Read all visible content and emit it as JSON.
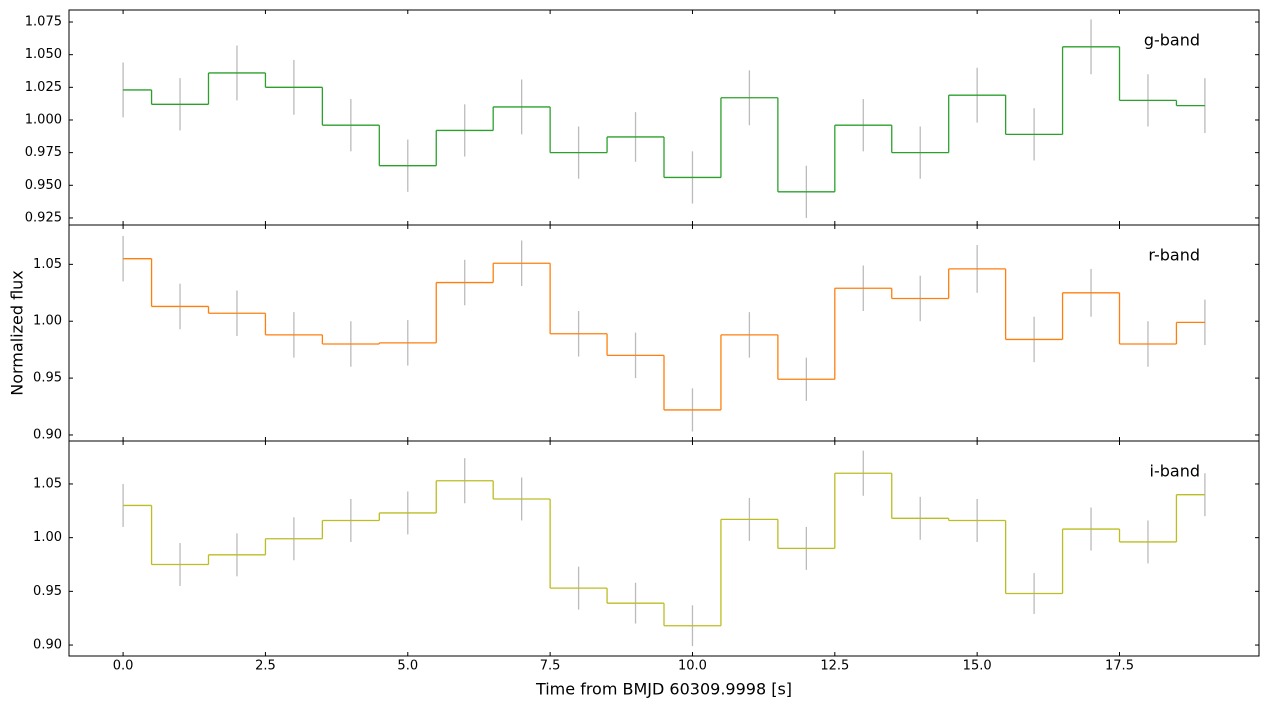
{
  "chart_data": [
    {
      "type": "step",
      "label": "g-band",
      "color": "#2ca02c",
      "x": [
        0,
        1,
        2,
        3,
        4,
        5,
        6,
        7,
        8,
        9,
        10,
        11,
        12,
        13,
        14,
        15,
        16,
        17,
        18,
        19
      ],
      "values": [
        1.023,
        1.012,
        1.036,
        1.025,
        0.996,
        0.965,
        0.992,
        1.01,
        0.975,
        0.987,
        0.956,
        1.017,
        0.945,
        0.996,
        0.975,
        1.019,
        0.989,
        1.056,
        1.015,
        1.011
      ],
      "errors": [
        0.021,
        0.02,
        0.021,
        0.021,
        0.02,
        0.02,
        0.02,
        0.021,
        0.02,
        0.019,
        0.02,
        0.021,
        0.02,
        0.02,
        0.02,
        0.021,
        0.02,
        0.021,
        0.02,
        0.021
      ],
      "error_color": "#bbbbbb",
      "ylim": [
        0.9196,
        1.0842
      ],
      "yticks": [
        0.925,
        {
          "value": 0.95,
          "label": "0.950"
        },
        {
          "value": 0.975,
          "label": "0.975"
        },
        {
          "value": 1,
          "label": "1.000"
        },
        1.025,
        {
          "value": 1.05,
          "label": "1.050"
        },
        1.075
      ]
    },
    {
      "type": "step",
      "label": "r-band",
      "color": "#ff7f0e",
      "y_label": "Normalized flux",
      "x": [
        0,
        1,
        2,
        3,
        4,
        5,
        6,
        7,
        8,
        9,
        10,
        11,
        12,
        13,
        14,
        15,
        16,
        17,
        18,
        19
      ],
      "values": [
        1.055,
        1.013,
        1.007,
        0.988,
        0.98,
        0.981,
        1.034,
        1.051,
        0.989,
        0.97,
        0.922,
        0.988,
        0.949,
        1.029,
        1.02,
        1.046,
        0.984,
        1.025,
        0.98,
        0.999
      ],
      "errors": [
        0.02,
        0.02,
        0.02,
        0.02,
        0.02,
        0.02,
        0.02,
        0.02,
        0.02,
        0.02,
        0.019,
        0.02,
        0.019,
        0.02,
        0.02,
        0.021,
        0.02,
        0.021,
        0.02,
        0.02
      ],
      "error_color": "#bbbbbb",
      "ylim": [
        0.8947,
        1.0846
      ],
      "yticks": [
        {
          "value": 0.9,
          "label": "0.90"
        },
        0.95,
        {
          "value": 1,
          "label": "1.00"
        },
        1.05
      ]
    },
    {
      "type": "step",
      "label": "i-band",
      "color": "#bcbd22",
      "x_label": "Time from BMJD 60309.9998 [s]",
      "x": [
        0,
        1,
        2,
        3,
        4,
        5,
        6,
        7,
        8,
        9,
        10,
        11,
        12,
        13,
        14,
        15,
        16,
        17,
        18,
        19
      ],
      "values": [
        1.03,
        0.975,
        0.984,
        0.999,
        1.016,
        1.023,
        1.053,
        1.036,
        0.953,
        0.939,
        0.918,
        1.017,
        0.99,
        1.06,
        1.018,
        1.016,
        0.948,
        1.008,
        0.996,
        1.04
      ],
      "errors": [
        0.02,
        0.02,
        0.02,
        0.02,
        0.02,
        0.02,
        0.021,
        0.02,
        0.02,
        0.019,
        0.019,
        0.02,
        0.02,
        0.021,
        0.02,
        0.02,
        0.019,
        0.02,
        0.02,
        0.02
      ],
      "error_color": "#bbbbbb",
      "ylim": [
        0.8898,
        1.09
      ],
      "yticks": [
        {
          "value": 0.9,
          "label": "0.90"
        },
        0.95,
        {
          "value": 1,
          "label": "1.00"
        },
        1.05
      ],
      "xlim": [
        -0.95,
        19.95
      ],
      "xticks": [
        {
          "value": 0,
          "label": "0.0"
        },
        2.5,
        {
          "value": 5,
          "label": "5.0"
        },
        7.5,
        {
          "value": 10,
          "label": "10.0"
        },
        12.5,
        {
          "value": 15,
          "label": "15.0"
        },
        17.5
      ]
    }
  ]
}
